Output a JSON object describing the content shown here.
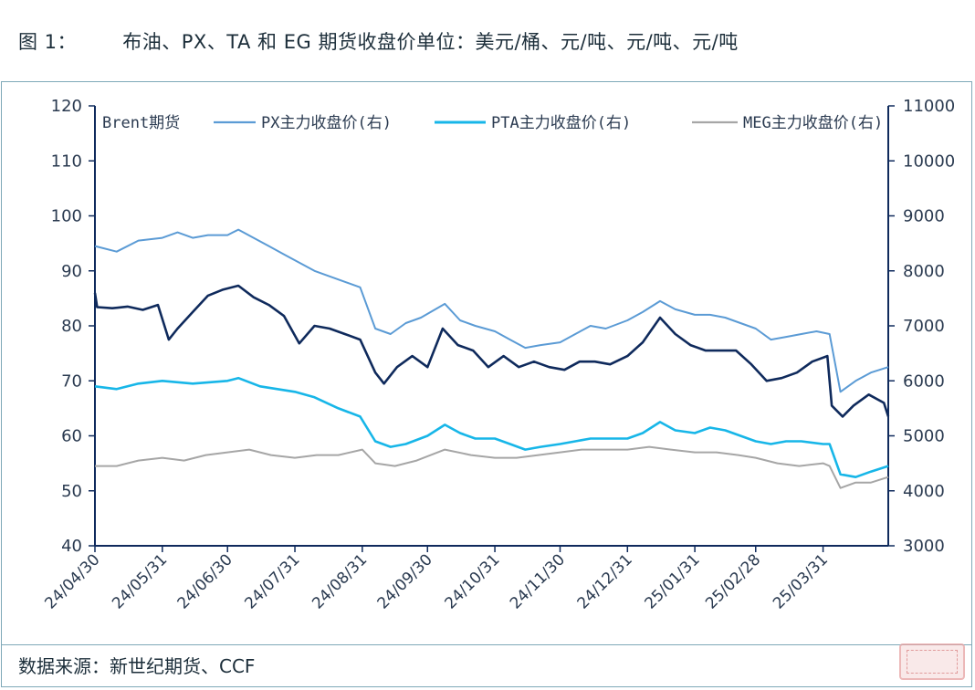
{
  "figure": {
    "title": "图 1：       布油、PX、TA 和 EG 期货收盘价单位：美元/桶、元/吨、元/吨、元/吨",
    "source": "数据来源：新世纪期货、CCF"
  },
  "colors": {
    "brent": "#0f2a5c",
    "px": "#5b9bd5",
    "pta": "#17b6e8",
    "meg": "#a6a6a6",
    "axis": "#0f2a5c"
  },
  "chart_data": {
    "type": "line",
    "ylim_left": [
      40,
      120
    ],
    "ylim_right": [
      3000,
      11000
    ],
    "yticks_left": [
      "40",
      "50",
      "60",
      "70",
      "80",
      "90",
      "100",
      "110",
      "120"
    ],
    "yticks_right": [
      "3000",
      "4000",
      "5000",
      "6000",
      "7000",
      "8000",
      "9000",
      "10000",
      "11000"
    ],
    "x_ticks": [
      "24/04/30",
      "24/05/31",
      "24/06/30",
      "24/07/31",
      "24/08/31",
      "24/09/30",
      "24/10/31",
      "24/11/30",
      "24/12/31",
      "25/01/31",
      "25/02/28",
      "25/03/31"
    ],
    "x_range": [
      "2024-04-30",
      "2025-04-30"
    ],
    "legend_position": "top",
    "series": [
      {
        "name": "Brent期货",
        "axis": "left",
        "points": [
          [
            "2024-04-30",
            86
          ],
          [
            "2024-05-01",
            83.4
          ],
          [
            "2024-05-08",
            83.2
          ],
          [
            "2024-05-15",
            83.5
          ],
          [
            "2024-05-22",
            82.9
          ],
          [
            "2024-05-29",
            83.8
          ],
          [
            "2024-06-03",
            77.5
          ],
          [
            "2024-06-07",
            79.5
          ],
          [
            "2024-06-14",
            82.5
          ],
          [
            "2024-06-21",
            85.5
          ],
          [
            "2024-06-28",
            86.6
          ],
          [
            "2024-07-05",
            87.3
          ],
          [
            "2024-07-12",
            85.2
          ],
          [
            "2024-07-19",
            83.8
          ],
          [
            "2024-07-26",
            81.8
          ],
          [
            "2024-08-02",
            76.8
          ],
          [
            "2024-08-09",
            80.0
          ],
          [
            "2024-08-16",
            79.5
          ],
          [
            "2024-08-23",
            78.5
          ],
          [
            "2024-08-30",
            77.5
          ],
          [
            "2024-09-06",
            71.5
          ],
          [
            "2024-09-10",
            69.5
          ],
          [
            "2024-09-16",
            72.5
          ],
          [
            "2024-09-23",
            74.5
          ],
          [
            "2024-09-30",
            72.5
          ],
          [
            "2024-10-07",
            79.5
          ],
          [
            "2024-10-14",
            76.5
          ],
          [
            "2024-10-21",
            75.5
          ],
          [
            "2024-10-28",
            72.5
          ],
          [
            "2024-11-04",
            74.5
          ],
          [
            "2024-11-11",
            72.5
          ],
          [
            "2024-11-18",
            73.5
          ],
          [
            "2024-11-25",
            72.5
          ],
          [
            "2024-12-02",
            72.0
          ],
          [
            "2024-12-09",
            73.5
          ],
          [
            "2024-12-16",
            73.5
          ],
          [
            "2024-12-23",
            73.0
          ],
          [
            "2024-12-31",
            74.5
          ],
          [
            "2025-01-07",
            77.0
          ],
          [
            "2025-01-15",
            81.5
          ],
          [
            "2025-01-22",
            78.5
          ],
          [
            "2025-01-29",
            76.5
          ],
          [
            "2025-02-05",
            75.5
          ],
          [
            "2025-02-12",
            75.5
          ],
          [
            "2025-02-19",
            75.5
          ],
          [
            "2025-02-26",
            73.0
          ],
          [
            "2025-03-05",
            70.0
          ],
          [
            "2025-03-12",
            70.5
          ],
          [
            "2025-03-19",
            71.5
          ],
          [
            "2025-03-26",
            73.5
          ],
          [
            "2025-04-02",
            74.5
          ],
          [
            "2025-04-04",
            65.5
          ],
          [
            "2025-04-09",
            63.5
          ],
          [
            "2025-04-14",
            65.5
          ],
          [
            "2025-04-21",
            67.5
          ],
          [
            "2025-04-28",
            66.0
          ],
          [
            "2025-04-30",
            63.5
          ]
        ]
      },
      {
        "name": "PX主力收盘价(右)",
        "axis": "right",
        "points": [
          [
            "2024-04-30",
            8450
          ],
          [
            "2024-05-10",
            8350
          ],
          [
            "2024-05-20",
            8550
          ],
          [
            "2024-05-31",
            8600
          ],
          [
            "2024-06-07",
            8700
          ],
          [
            "2024-06-14",
            8600
          ],
          [
            "2024-06-21",
            8650
          ],
          [
            "2024-06-30",
            8650
          ],
          [
            "2024-07-05",
            8750
          ],
          [
            "2024-07-12",
            8600
          ],
          [
            "2024-07-19",
            8450
          ],
          [
            "2024-07-26",
            8300
          ],
          [
            "2024-08-02",
            8150
          ],
          [
            "2024-08-09",
            8000
          ],
          [
            "2024-08-16",
            7900
          ],
          [
            "2024-08-23",
            7800
          ],
          [
            "2024-08-30",
            7700
          ],
          [
            "2024-09-06",
            6950
          ],
          [
            "2024-09-13",
            6850
          ],
          [
            "2024-09-20",
            7050
          ],
          [
            "2024-09-27",
            7150
          ],
          [
            "2024-10-08",
            7400
          ],
          [
            "2024-10-15",
            7100
          ],
          [
            "2024-10-22",
            7000
          ],
          [
            "2024-10-31",
            6900
          ],
          [
            "2024-11-07",
            6750
          ],
          [
            "2024-11-14",
            6600
          ],
          [
            "2024-11-21",
            6650
          ],
          [
            "2024-11-30",
            6700
          ],
          [
            "2024-12-07",
            6850
          ],
          [
            "2024-12-14",
            7000
          ],
          [
            "2024-12-21",
            6950
          ],
          [
            "2024-12-31",
            7100
          ],
          [
            "2025-01-07",
            7250
          ],
          [
            "2025-01-15",
            7450
          ],
          [
            "2025-01-22",
            7300
          ],
          [
            "2025-01-31",
            7200
          ],
          [
            "2025-02-07",
            7200
          ],
          [
            "2025-02-14",
            7150
          ],
          [
            "2025-02-21",
            7050
          ],
          [
            "2025-02-28",
            6950
          ],
          [
            "2025-03-07",
            6750
          ],
          [
            "2025-03-14",
            6800
          ],
          [
            "2025-03-21",
            6850
          ],
          [
            "2025-03-28",
            6900
          ],
          [
            "2025-04-03",
            6850
          ],
          [
            "2025-04-08",
            5800
          ],
          [
            "2025-04-15",
            6000
          ],
          [
            "2025-04-22",
            6150
          ],
          [
            "2025-04-30",
            6250
          ]
        ]
      },
      {
        "name": "PTA主力收盘价(右)",
        "axis": "right",
        "points": [
          [
            "2024-04-30",
            5900
          ],
          [
            "2024-05-10",
            5850
          ],
          [
            "2024-05-20",
            5950
          ],
          [
            "2024-05-31",
            6000
          ],
          [
            "2024-06-14",
            5950
          ],
          [
            "2024-06-30",
            6000
          ],
          [
            "2024-07-05",
            6050
          ],
          [
            "2024-07-15",
            5900
          ],
          [
            "2024-07-31",
            5800
          ],
          [
            "2024-08-09",
            5700
          ],
          [
            "2024-08-20",
            5500
          ],
          [
            "2024-08-30",
            5350
          ],
          [
            "2024-09-06",
            4900
          ],
          [
            "2024-09-13",
            4800
          ],
          [
            "2024-09-20",
            4850
          ],
          [
            "2024-09-30",
            5000
          ],
          [
            "2024-10-08",
            5200
          ],
          [
            "2024-10-15",
            5050
          ],
          [
            "2024-10-22",
            4950
          ],
          [
            "2024-10-31",
            4950
          ],
          [
            "2024-11-07",
            4850
          ],
          [
            "2024-11-14",
            4750
          ],
          [
            "2024-11-21",
            4800
          ],
          [
            "2024-11-30",
            4850
          ],
          [
            "2024-12-07",
            4900
          ],
          [
            "2024-12-14",
            4950
          ],
          [
            "2024-12-21",
            4950
          ],
          [
            "2024-12-31",
            4950
          ],
          [
            "2025-01-07",
            5050
          ],
          [
            "2025-01-15",
            5250
          ],
          [
            "2025-01-22",
            5100
          ],
          [
            "2025-01-31",
            5050
          ],
          [
            "2025-02-07",
            5150
          ],
          [
            "2025-02-14",
            5100
          ],
          [
            "2025-02-21",
            5000
          ],
          [
            "2025-02-28",
            4900
          ],
          [
            "2025-03-07",
            4850
          ],
          [
            "2025-03-14",
            4900
          ],
          [
            "2025-03-21",
            4900
          ],
          [
            "2025-03-31",
            4850
          ],
          [
            "2025-04-03",
            4850
          ],
          [
            "2025-04-08",
            4300
          ],
          [
            "2025-04-15",
            4250
          ],
          [
            "2025-04-22",
            4350
          ],
          [
            "2025-04-30",
            4450
          ]
        ]
      },
      {
        "name": "MEG主力收盘价(右)",
        "axis": "right",
        "points": [
          [
            "2024-04-30",
            4450
          ],
          [
            "2024-05-10",
            4450
          ],
          [
            "2024-05-20",
            4550
          ],
          [
            "2024-05-31",
            4600
          ],
          [
            "2024-06-10",
            4550
          ],
          [
            "2024-06-20",
            4650
          ],
          [
            "2024-06-30",
            4700
          ],
          [
            "2024-07-10",
            4750
          ],
          [
            "2024-07-20",
            4650
          ],
          [
            "2024-07-31",
            4600
          ],
          [
            "2024-08-10",
            4650
          ],
          [
            "2024-08-20",
            4650
          ],
          [
            "2024-08-31",
            4750
          ],
          [
            "2024-09-06",
            4500
          ],
          [
            "2024-09-15",
            4450
          ],
          [
            "2024-09-25",
            4550
          ],
          [
            "2024-10-08",
            4750
          ],
          [
            "2024-10-20",
            4650
          ],
          [
            "2024-10-31",
            4600
          ],
          [
            "2024-11-10",
            4600
          ],
          [
            "2024-11-20",
            4650
          ],
          [
            "2024-11-30",
            4700
          ],
          [
            "2024-12-10",
            4750
          ],
          [
            "2024-12-20",
            4750
          ],
          [
            "2024-12-31",
            4750
          ],
          [
            "2025-01-10",
            4800
          ],
          [
            "2025-01-20",
            4750
          ],
          [
            "2025-01-31",
            4700
          ],
          [
            "2025-02-10",
            4700
          ],
          [
            "2025-02-20",
            4650
          ],
          [
            "2025-02-28",
            4600
          ],
          [
            "2025-03-10",
            4500
          ],
          [
            "2025-03-20",
            4450
          ],
          [
            "2025-03-31",
            4500
          ],
          [
            "2025-04-03",
            4450
          ],
          [
            "2025-04-08",
            4050
          ],
          [
            "2025-04-15",
            4150
          ],
          [
            "2025-04-22",
            4150
          ],
          [
            "2025-04-30",
            4250
          ]
        ]
      }
    ]
  }
}
